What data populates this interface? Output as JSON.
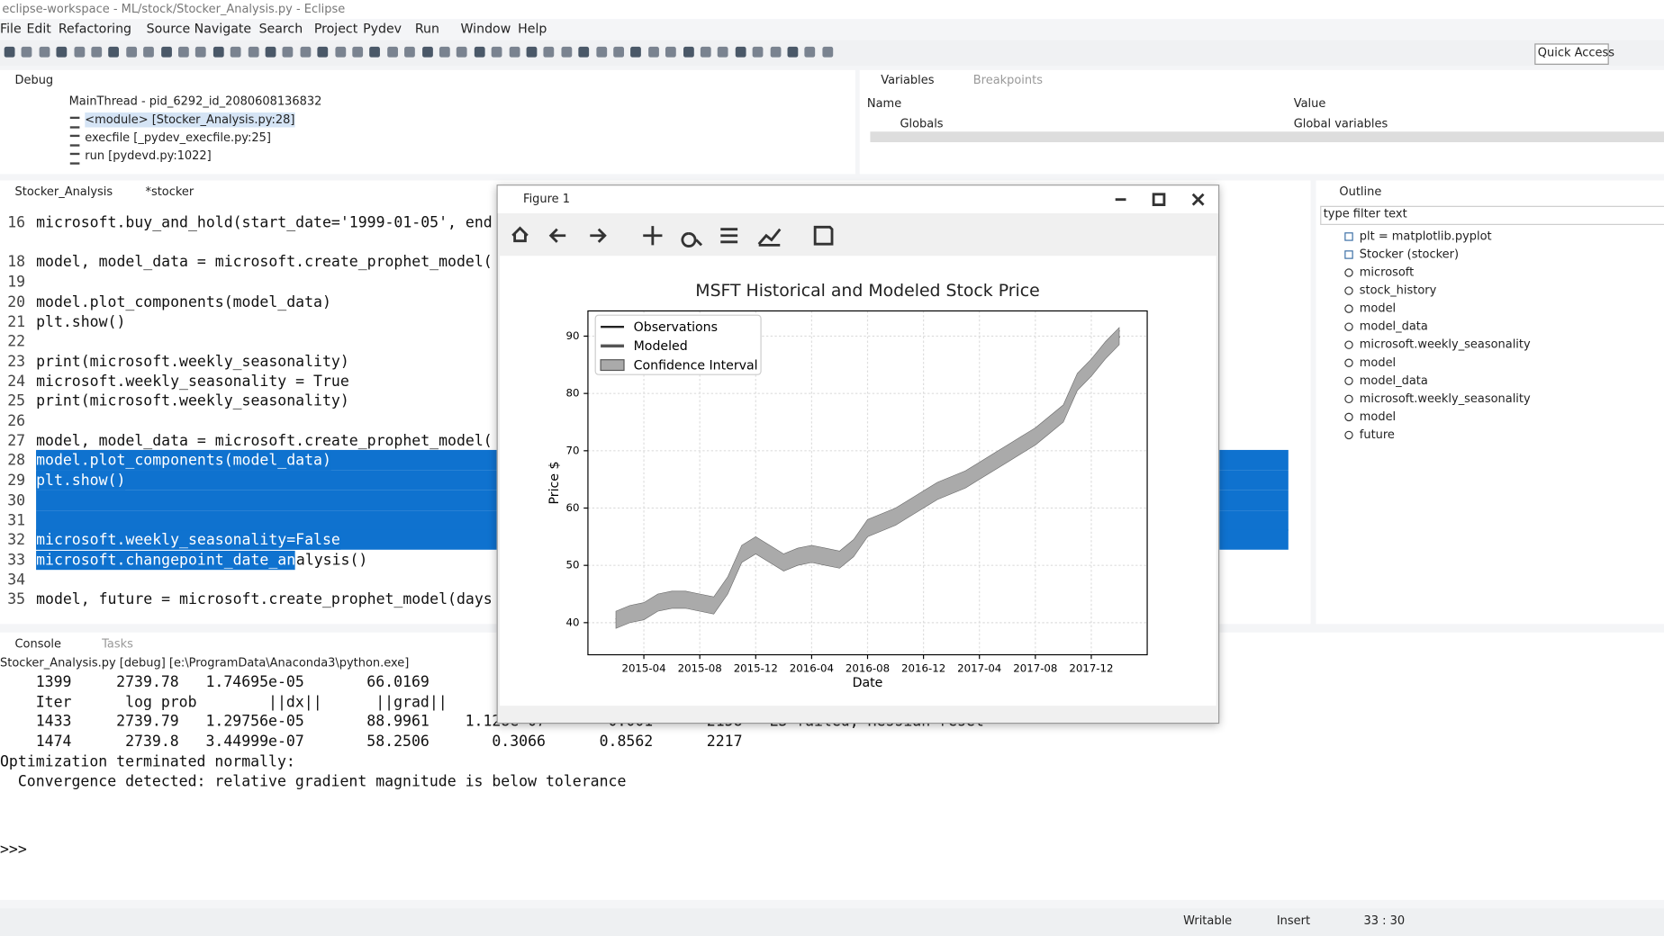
{
  "window": {
    "title": "eclipse-workspace - ML/stock/Stocker_Analysis.py - Eclipse"
  },
  "menu": [
    "File",
    "Edit",
    "Refactoring",
    "Source",
    "Navigate",
    "Search",
    "Project",
    "Pydev",
    "Run",
    "Window",
    "Help"
  ],
  "quick_access": "Quick Access",
  "debug": {
    "tab": "Debug",
    "thread": "MainThread - pid_6292_id_2080608136832",
    "frames": [
      "<module> [Stocker_Analysis.py:28]",
      "execfile [_pydev_execfile.py:25]",
      "run [pydevd.py:1022]"
    ]
  },
  "variables": {
    "tabs": [
      "Variables",
      "Breakpoints"
    ],
    "headers": [
      "Name",
      "Value"
    ],
    "rows": [
      [
        "Globals",
        "Global variables"
      ]
    ]
  },
  "editor": {
    "tabs": [
      "Stocker_Analysis",
      "*stocker"
    ],
    "lines": [
      {
        "number": 16,
        "parts": [
          "microsoft.buy_and_hold(start_date='1999-01-05', end"
        ]
      },
      {
        "number": null,
        "parts": []
      },
      {
        "number": 18,
        "parts": [
          "model, model_data = microsoft.create_prophet_model("
        ]
      },
      {
        "number": 19,
        "parts": []
      },
      {
        "number": 20,
        "parts": [
          "model.plot_components(model_data)"
        ]
      },
      {
        "number": 21,
        "parts": [
          "plt.show()"
        ]
      },
      {
        "number": 22,
        "parts": []
      },
      {
        "number": 23,
        "parts": [
          "print(microsoft.weekly_seasonality)"
        ]
      },
      {
        "number": 24,
        "parts": [
          "microsoft.weekly_seasonality = True"
        ]
      },
      {
        "number": 25,
        "parts": [
          "print(microsoft.weekly_seasonality)"
        ]
      },
      {
        "number": 26,
        "parts": []
      },
      {
        "number": 27,
        "parts": [
          "model, model_data = microsoft.create_prophet_model("
        ]
      },
      {
        "number": 28,
        "parts": [
          "model.plot_components(model_data)"
        ],
        "highlight": "full"
      },
      {
        "number": 29,
        "parts": [
          "plt.show()"
        ],
        "highlight": "full"
      },
      {
        "number": 30,
        "parts": [],
        "highlight": "full"
      },
      {
        "number": 31,
        "parts": [],
        "highlight": "full"
      },
      {
        "number": 32,
        "parts": [
          "microsoft.weekly_seasonality=False"
        ],
        "highlight": "full"
      },
      {
        "number": 33,
        "parts": [
          "microsoft.changepoint_date_an",
          "alysis()"
        ],
        "highlight": "partial"
      },
      {
        "number": 34,
        "parts": []
      },
      {
        "number": 35,
        "parts": [
          "model, future = microsoft.create_prophet_model(days"
        ]
      }
    ]
  },
  "figure": {
    "title": "Figure 1"
  },
  "outline": {
    "tab": "Outline",
    "filter": "type filter text",
    "items": [
      "plt = matplotlib.pyplot",
      "Stocker (stocker)",
      "microsoft",
      "stock_history",
      "model",
      "model_data",
      "microsoft.weekly_seasonality",
      "model",
      "model_data",
      "microsoft.weekly_seasonality",
      "model",
      "future"
    ]
  },
  "console": {
    "tabs": [
      "Console",
      "Tasks"
    ],
    "process": "Stocker_Analysis.py [debug] [e:\\ProgramData\\Anaconda3\\python.exe]",
    "lines": [
      "    1399     2739.78   1.74695e-05       66.0169",
      "    Iter      log prob        ||dx||      ||grad||",
      "    1433     2739.79   1.29756e-05       88.9961    1.128e-07       0.001      2158   LS failed, Hessian reset",
      "    1474      2739.8   3.44999e-07       58.2506       0.3066      0.8562      2217",
      "Optimization terminated normally:",
      "  Convergence detected: relative gradient magnitude is below tolerance"
    ],
    "prompt": ">>>"
  },
  "status": [
    "Writable",
    "Insert",
    "33 : 30"
  ],
  "chart_data": {
    "type": "line",
    "title": "MSFT Historical and Modeled Stock Price",
    "x_label": "Date",
    "y_label": "Price $",
    "x": [
      "2015-02",
      "2015-03",
      "2015-04",
      "2015-05",
      "2015-06",
      "2015-07",
      "2015-08",
      "2015-09",
      "2015-10",
      "2015-11",
      "2015-12",
      "2016-01",
      "2016-02",
      "2016-03",
      "2016-04",
      "2016-05",
      "2016-06",
      "2016-07",
      "2016-08",
      "2016-09",
      "2016-10",
      "2016-11",
      "2016-12",
      "2017-01",
      "2017-02",
      "2017-03",
      "2017-04",
      "2017-05",
      "2017-06",
      "2017-07",
      "2017-08",
      "2017-09",
      "2017-10",
      "2017-11",
      "2017-12",
      "2018-01",
      "2018-02"
    ],
    "series": [
      {
        "name": "Observations",
        "color": "#222222",
        "values": [
          40,
          41,
          41.5,
          44,
          43.5,
          44.5,
          43.5,
          42.5,
          47,
          53,
          54,
          51.5,
          50,
          52,
          52.5,
          51.5,
          50.5,
          53,
          57,
          57,
          58,
          60,
          62,
          62.5,
          64,
          65,
          66,
          68.5,
          70,
          71,
          73,
          74,
          76,
          83,
          84,
          88,
          91
        ]
      },
      {
        "name": "Modeled",
        "color": "#555555",
        "values": [
          40.5,
          41.5,
          42,
          43.5,
          44,
          44,
          43.5,
          43,
          46.5,
          52,
          53.5,
          52,
          50.5,
          51.5,
          52,
          51.5,
          51,
          53,
          56.5,
          57.5,
          58.5,
          60,
          61.5,
          63,
          64,
          65,
          66.5,
          68,
          69.5,
          71,
          72.5,
          74.5,
          76.5,
          82,
          84.5,
          87.5,
          90
        ]
      },
      {
        "name": "Confidence Interval",
        "color": "#aaaaaa",
        "lower": [
          39,
          40,
          40.5,
          42,
          42.5,
          42.5,
          42,
          41.5,
          45,
          50.5,
          52,
          50.5,
          49,
          50,
          50.5,
          50,
          49.5,
          51.5,
          55,
          56,
          57,
          58.5,
          60,
          61.5,
          62.5,
          63.5,
          65,
          66.5,
          68,
          69.5,
          71,
          73,
          75,
          80.5,
          83,
          86,
          88.5
        ],
        "upper": [
          42,
          43,
          43.5,
          45,
          45.5,
          45.5,
          45,
          44.5,
          48,
          53.5,
          55,
          53.5,
          52,
          53,
          53.5,
          53,
          52.5,
          54.5,
          58,
          59,
          60,
          61.5,
          63,
          64.5,
          65.5,
          66.5,
          68,
          69.5,
          71,
          72.5,
          74,
          76,
          78,
          83.5,
          86,
          89,
          91.5
        ]
      }
    ],
    "xlim": [
      "2014-12",
      "2018-04"
    ],
    "xticks": [
      "2015-04",
      "2015-08",
      "2015-12",
      "2016-04",
      "2016-08",
      "2016-12",
      "2017-04",
      "2017-08",
      "2017-12"
    ],
    "ylim": [
      34.4,
      94.4
    ],
    "yticks": [
      40,
      50,
      60,
      70,
      80,
      90
    ],
    "grid": true
  }
}
